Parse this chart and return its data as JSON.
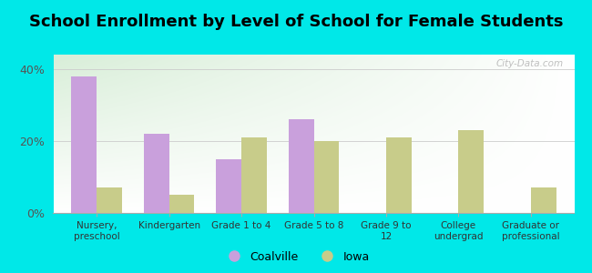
{
  "title": "School Enrollment by Level of School for Female Students",
  "categories": [
    "Nursery,\npreschool",
    "Kindergarten",
    "Grade 1 to 4",
    "Grade 5 to 8",
    "Grade 9 to\n12",
    "College\nundergrad",
    "Graduate or\nprofessional"
  ],
  "coalville": [
    38,
    22,
    15,
    26,
    0,
    0,
    0
  ],
  "iowa": [
    7,
    5,
    21,
    20,
    21,
    23,
    7
  ],
  "coalville_color": "#c9a0dc",
  "iowa_color": "#c8cc8a",
  "background_outer": "#00e8e8",
  "background_inner_topleft": "#d8eed8",
  "background_inner_white": "#ffffff",
  "title_fontsize": 13,
  "ylabel_ticks": [
    "0%",
    "20%",
    "40%"
  ],
  "ytick_vals": [
    0,
    20,
    40
  ],
  "ylim": [
    0,
    44
  ],
  "legend_labels": [
    "Coalville",
    "Iowa"
  ],
  "watermark": "City-Data.com"
}
